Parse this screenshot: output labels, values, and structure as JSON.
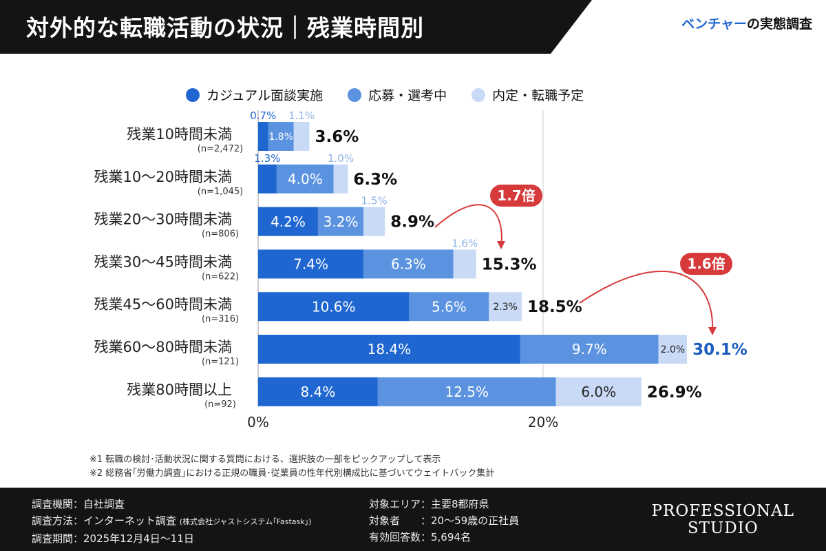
{
  "header": {
    "title": "対外的な転職活動の状況｜残業時間別",
    "brand_highlight": "ベンチャー",
    "brand_rest": "の実態調査"
  },
  "colors": {
    "casual": "#1f66d1",
    "applying": "#5b93e0",
    "offer": "#c9daf6",
    "highlight_total": "#1a5bbf",
    "badge": "#d63a3a"
  },
  "chart_data": {
    "type": "bar",
    "orientation": "horizontal",
    "stacked": true,
    "legend": [
      "カジュアル面談実施",
      "応募・選考中",
      "内定・転職予定"
    ],
    "legend_position": "top",
    "categories": [
      "残業10時間未満",
      "残業10〜20時間未満",
      "残業20〜30時間未満",
      "残業30〜45時間未満",
      "残業45〜60時間未満",
      "残業60〜80時間未満",
      "残業80時間以上"
    ],
    "sample_sizes": [
      "(n=2,472)",
      "(n=1,045)",
      "(n=806)",
      "(n=622)",
      "(n=316)",
      "(n=121)",
      "(n=92)"
    ],
    "series": [
      {
        "name": "カジュアル面談実施",
        "values": [
          0.7,
          1.3,
          4.2,
          7.4,
          10.6,
          18.4,
          8.4
        ]
      },
      {
        "name": "応募・選考中",
        "values": [
          1.8,
          4.0,
          3.2,
          6.3,
          5.6,
          9.7,
          12.5
        ]
      },
      {
        "name": "内定・転職予定",
        "values": [
          1.1,
          1.0,
          1.5,
          1.6,
          2.3,
          2.0,
          6.0
        ]
      }
    ],
    "totals": [
      3.6,
      6.3,
      8.9,
      15.3,
      18.5,
      30.1,
      26.9
    ],
    "highlighted_total_index": 5,
    "xlim": [
      0,
      30
    ],
    "xticks": [
      "0%",
      "20%"
    ],
    "grid": true,
    "annotations": [
      {
        "label": "1.7倍",
        "from": "残業20〜30時間未満",
        "to": "残業30〜45時間未満"
      },
      {
        "label": "1.6倍",
        "from": "残業45〜60時間未満",
        "to": "残業60〜80時間未満"
      }
    ]
  },
  "notes": [
    "※1 転職の検討･活動状況に関する質問における、選択肢の一部をピックアップして表示",
    "※2 総務省｢労働力調査｣における正規の職員･従業員の性年代別構成比に基づいてウェイトバック集計"
  ],
  "footer": {
    "left": [
      "調査機関：自社調査",
      "調査方法：インターネット調査",
      "調査期間：2025年12月4日〜11日"
    ],
    "method_note": "(株式会社ジャストシステム｢Fastask｣)",
    "right": [
      "対象エリア：主要8都府県",
      "対象者　　：20〜59歳の正社員",
      "有効回答数：5,694名"
    ],
    "logo_line1": "PROFESSIONAL",
    "logo_line2": "STUDIO"
  }
}
